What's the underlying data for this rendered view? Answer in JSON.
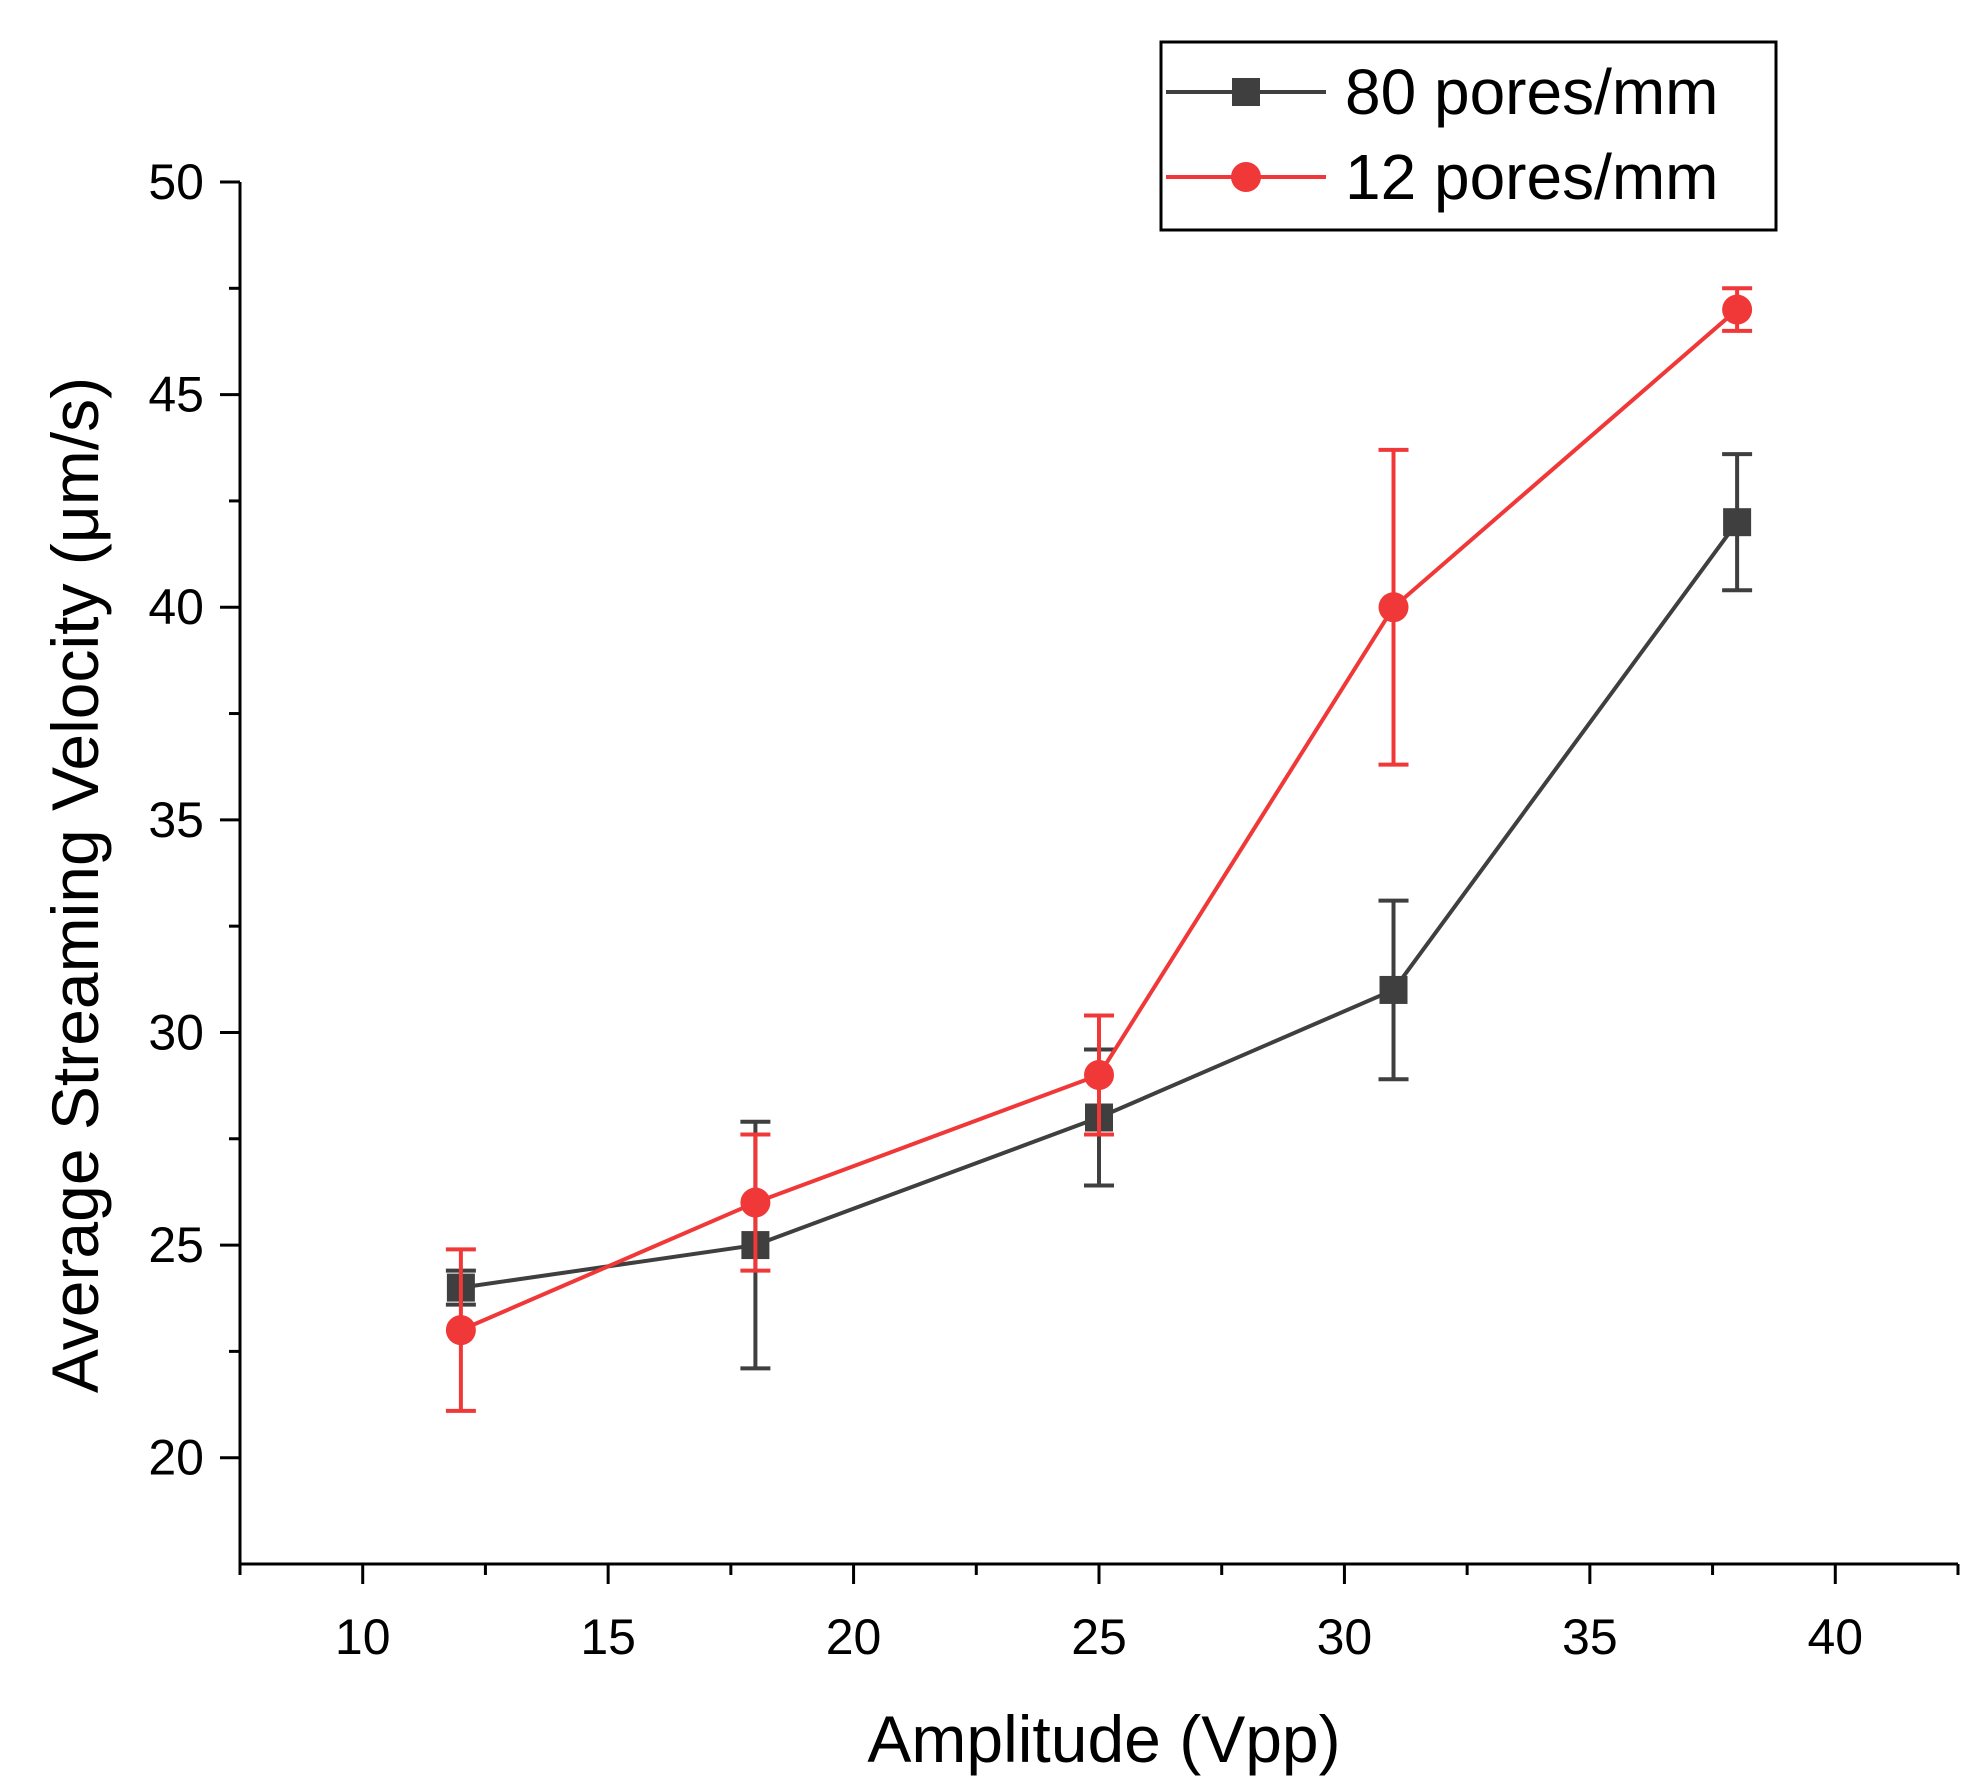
{
  "chart_data": {
    "type": "line",
    "title": "",
    "xlabel": "Amplitude (Vpp)",
    "ylabel": "Average Streaming Velocity (μm/s)",
    "xlim": [
      7.5,
      42.5
    ],
    "ylim": [
      17.5,
      50
    ],
    "xticks": [
      10,
      15,
      20,
      25,
      30,
      35,
      40
    ],
    "yticks": [
      20,
      25,
      30,
      35,
      40,
      45,
      50
    ],
    "x": [
      12,
      18,
      25,
      31,
      38
    ],
    "legend_position": "top-right",
    "series": [
      {
        "name": "80 pores/mm",
        "color": "#3f3f3f",
        "marker": "square",
        "values": [
          24,
          25,
          28,
          31,
          42
        ],
        "err_low": [
          23.6,
          22.1,
          26.4,
          28.9,
          40.4
        ],
        "err_high": [
          24.4,
          27.9,
          29.6,
          33.1,
          43.6
        ]
      },
      {
        "name": "12 pores/mm",
        "color": "#f03838",
        "marker": "circle",
        "values": [
          23,
          26,
          29,
          40,
          47
        ],
        "err_low": [
          21.1,
          24.4,
          27.6,
          36.3,
          46.5
        ],
        "err_high": [
          24.9,
          27.6,
          30.4,
          43.7,
          47.5
        ]
      }
    ]
  }
}
